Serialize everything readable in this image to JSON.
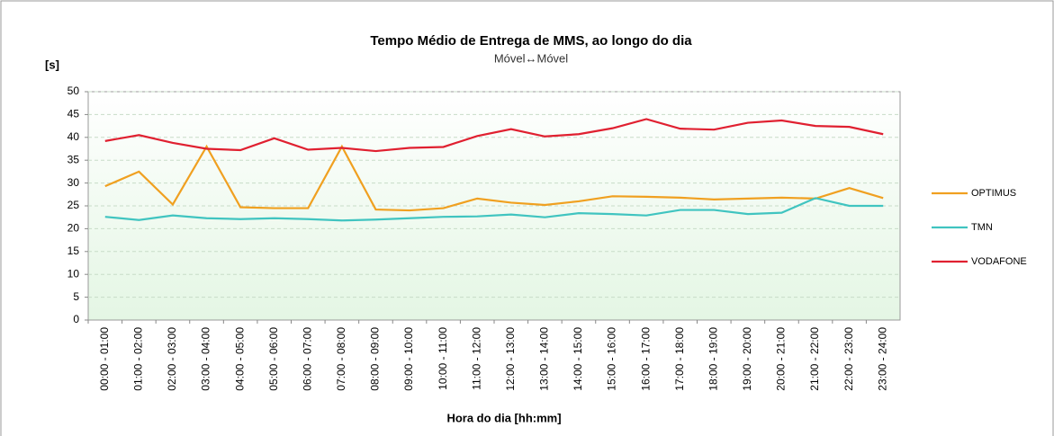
{
  "chart_data": {
    "type": "line",
    "title": "Tempo Médio de Entrega de MMS, ao longo do dia",
    "subtitle": "Móvel↔Móvel",
    "y_label": "[s]",
    "x_label": "Hora do dia [hh:mm]",
    "categories": [
      "00:00 - 01:00",
      "01:00 - 02:00",
      "02:00 - 03:00",
      "03:00 - 04:00",
      "04:00 - 05:00",
      "05:00 - 06:00",
      "06:00 - 07:00",
      "07:00 - 08:00",
      "08:00 - 09:00",
      "09:00 - 10:00",
      "10:00 - 11:00",
      "11:00 - 12:00",
      "12:00 - 13:00",
      "13:00 - 14:00",
      "14:00 - 15:00",
      "15:00 - 16:00",
      "16:00 - 17:00",
      "17:00 - 18:00",
      "18:00 - 19:00",
      "19:00 - 20:00",
      "20:00 - 21:00",
      "21:00 - 22:00",
      "22:00 - 23:00",
      "23:00 - 24:00"
    ],
    "series": [
      {
        "name": "OPTIMUS",
        "color": "#f0a020",
        "values": [
          29.3,
          32.5,
          25.3,
          38,
          24.7,
          24.5,
          24.5,
          38,
          24.2,
          24,
          24.5,
          26.6,
          25.7,
          25.2,
          26,
          27.1,
          27,
          26.8,
          26.4,
          26.6,
          26.8,
          26.6,
          28.9,
          26.7
        ]
      },
      {
        "name": "TMN",
        "color": "#40c4c0",
        "values": [
          22.6,
          21.9,
          22.9,
          22.3,
          22.1,
          22.3,
          22.1,
          21.8,
          22,
          22.3,
          22.6,
          22.7,
          23.1,
          22.5,
          23.4,
          23.2,
          22.9,
          24.1,
          24.1,
          23.2,
          23.5,
          26.7,
          25,
          25
        ]
      },
      {
        "name": "VODAFONE",
        "color": "#e02030",
        "values": [
          39.2,
          40.5,
          38.8,
          37.5,
          37.2,
          39.8,
          37.3,
          37.7,
          37,
          37.7,
          37.9,
          40.3,
          41.8,
          40.2,
          40.7,
          42,
          44,
          41.9,
          41.7,
          43.2,
          43.7,
          42.5,
          42.3,
          40.7
        ]
      }
    ],
    "ylim": [
      0,
      50
    ],
    "yticks": [
      0,
      5,
      10,
      15,
      20,
      25,
      30,
      35,
      40,
      45,
      50
    ],
    "grid": true,
    "legend": "right"
  }
}
